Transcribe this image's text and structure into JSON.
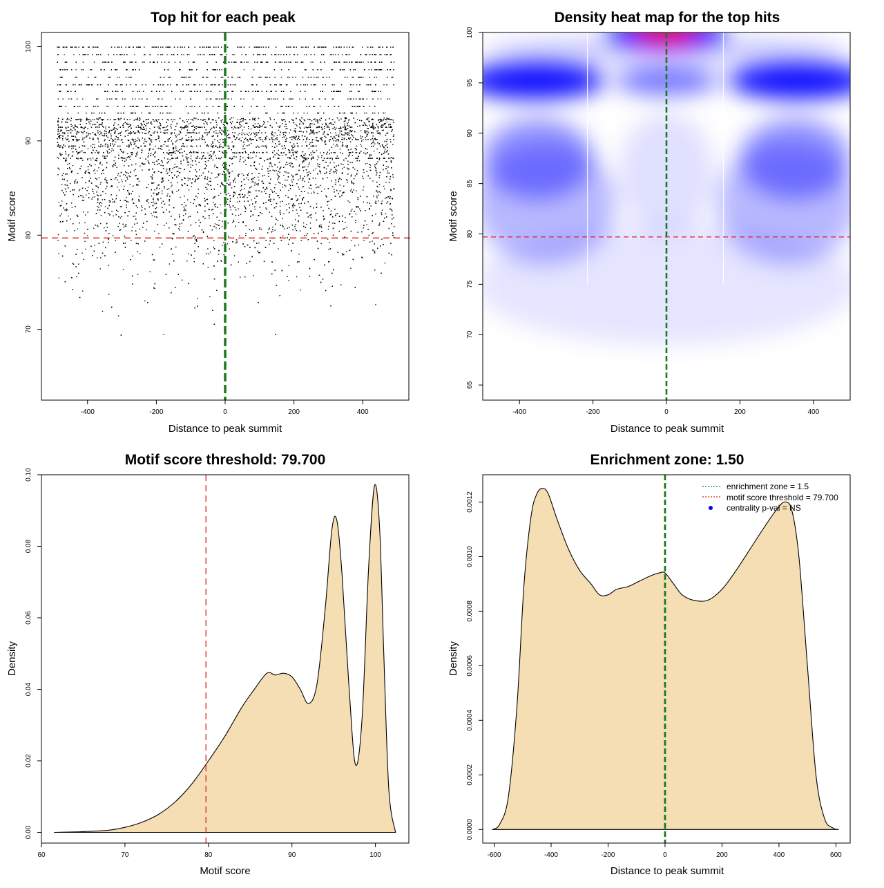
{
  "chart_data": [
    {
      "id": "scatter",
      "type": "scatter",
      "title": "Top hit for each peak",
      "xlabel": "Distance to peak summit",
      "ylabel": "Motif score",
      "xlim": [
        -534,
        534
      ],
      "ylim": [
        62.5,
        101.5
      ],
      "xticks": [
        "-400",
        "-200",
        "0",
        "200",
        "400"
      ],
      "yticks": [
        "70",
        "80",
        "90",
        "100"
      ],
      "threshold": 79.7,
      "center": 0,
      "threshold_color": "#e02020",
      "center_color": "#1a7a1a",
      "point_color": "#000000",
      "n_points": 9000,
      "score_levels": [
        100,
        99.2,
        98.4,
        97.6,
        96.8,
        96,
        95.3,
        94.5,
        93.7,
        93,
        92.3,
        91.5,
        90.9,
        90.2,
        89.5,
        88.8,
        88.2
      ]
    },
    {
      "id": "heatmap",
      "type": "heatmap",
      "title": "Density heat map for the top hits",
      "xlabel": "Distance to peak summit",
      "ylabel": "Motif score",
      "xlim": [
        -500,
        500
      ],
      "ylim": [
        63.5,
        100
      ],
      "xticks": [
        "-400",
        "-200",
        "0",
        "200",
        "400"
      ],
      "yticks": [
        "65",
        "70",
        "75",
        "80",
        "85",
        "90",
        "95",
        "100"
      ],
      "threshold": 79.7,
      "center": 0,
      "low_color": "#ffffff",
      "mid_color": "#0000ff",
      "high_color": "#ff0000"
    },
    {
      "id": "score_density",
      "type": "area",
      "title": "Motif score threshold: 79.700",
      "xlabel": "Motif score",
      "ylabel": "Density",
      "xlim": [
        60,
        104
      ],
      "ylim": [
        -0.003,
        0.1
      ],
      "xticks": [
        "60",
        "70",
        "80",
        "90",
        "100"
      ],
      "yticks": [
        "0.00",
        "0.02",
        "0.04",
        "0.06",
        "0.08",
        "0.10"
      ],
      "threshold": 79.7,
      "fill_color": "#f5deb3",
      "x": [
        61.5,
        65,
        68,
        70,
        72,
        74,
        76,
        78,
        80,
        82,
        84,
        85.5,
        87,
        88,
        89,
        90,
        91,
        92,
        93,
        94,
        94.8,
        95.4,
        96,
        96.8,
        97.6,
        98.4,
        99.2,
        99.9,
        100.5,
        101,
        101.6,
        102.4
      ],
      "y": [
        0,
        0.0002,
        0.0006,
        0.0014,
        0.0028,
        0.005,
        0.0085,
        0.0135,
        0.02,
        0.027,
        0.035,
        0.04,
        0.0445,
        0.044,
        0.0445,
        0.0435,
        0.04,
        0.036,
        0.0415,
        0.063,
        0.085,
        0.087,
        0.072,
        0.042,
        0.019,
        0.032,
        0.075,
        0.097,
        0.085,
        0.05,
        0.012,
        0
      ]
    },
    {
      "id": "distance_density",
      "type": "area",
      "title": "Enrichment zone: 1.50",
      "xlabel": "Distance to peak summit",
      "ylabel": "Density",
      "xlim": [
        -640,
        650
      ],
      "ylim": [
        -5e-05,
        0.0013
      ],
      "xticks": [
        "-600",
        "-400",
        "-200",
        "0",
        "200",
        "400",
        "600"
      ],
      "yticks": [
        "0.0000",
        "0.0002",
        "0.0004",
        "0.0006",
        "0.0008",
        "0.0010",
        "0.0012"
      ],
      "center": 0,
      "fill_color": "#f5deb3",
      "x": [
        -605,
        -580,
        -550,
        -520,
        -495,
        -470,
        -450,
        -430,
        -410,
        -380,
        -340,
        -300,
        -260,
        -230,
        -200,
        -170,
        -130,
        -90,
        -50,
        -20,
        0,
        30,
        60,
        100,
        150,
        200,
        250,
        300,
        350,
        390,
        420,
        445,
        470,
        500,
        530,
        560,
        590,
        610
      ],
      "y": [
        0,
        2e-05,
        0.00012,
        0.00045,
        0.0009,
        0.00115,
        0.00123,
        0.00125,
        0.00123,
        0.00114,
        0.00103,
        0.00095,
        0.0009,
        0.00086,
        0.00086,
        0.00088,
        0.00089,
        0.00091,
        0.00093,
        0.00094,
        0.00094,
        0.0009,
        0.00086,
        0.00084,
        0.00084,
        0.00088,
        0.00095,
        0.00103,
        0.00111,
        0.00117,
        0.0012,
        0.00117,
        0.001,
        0.0006,
        0.0002,
        4e-05,
        5e-06,
        0
      ],
      "legend": [
        {
          "label": "enrichment zone = 1.5",
          "color": "#1a7a1a",
          "kind": "line"
        },
        {
          "label": "motif score threshold = 79.700",
          "color": "#e02020",
          "kind": "line"
        },
        {
          "label": "centrality p-val = NS",
          "color": "#0000ff",
          "kind": "point"
        }
      ],
      "legend_position": "top-right"
    }
  ]
}
